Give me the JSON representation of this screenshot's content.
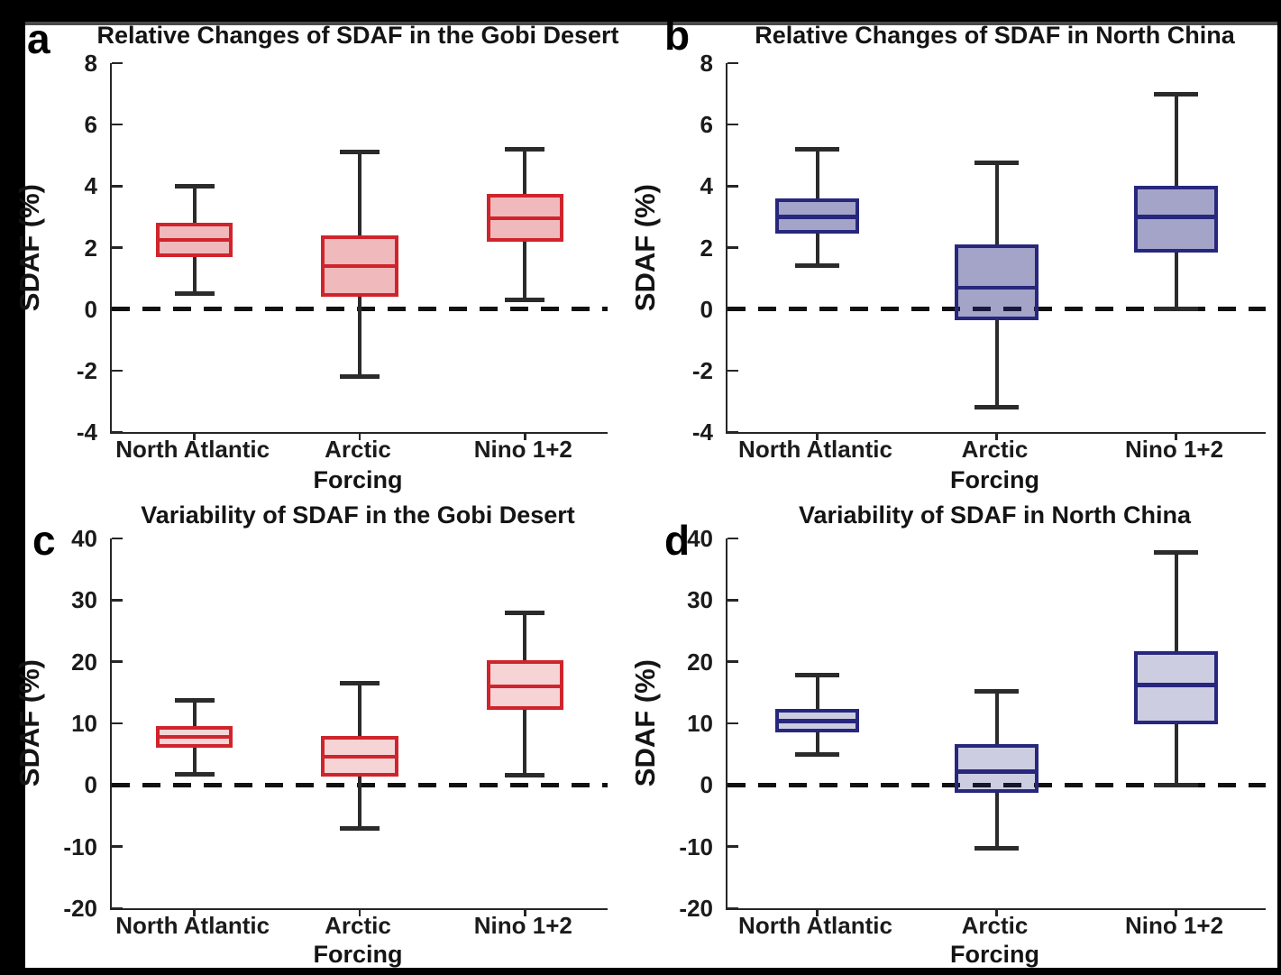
{
  "colors": {
    "frame_background": "#000000",
    "canvas_background": "#ffffff",
    "axis_line": "#262626",
    "whisker_line": "#2b2b2b",
    "zero_dash_line": "#111111",
    "red_box_edge": "#d0242c",
    "red_box_fill_top": "rgba(208,36,44,0.32)",
    "red_box_fill_bottom": "rgba(208,36,44,0.20)",
    "blue_box_edge": "#27277d",
    "blue_box_fill_top": "rgba(39,39,125,0.42)",
    "blue_box_fill_bottom": "rgba(39,39,125,0.23)"
  },
  "chart_data": [
    {
      "type": "box",
      "letter": "a",
      "title": "Relative Changes of SDAF in the Gobi Desert",
      "ylabel": "SDAF (%)",
      "xlabel": "Forcing",
      "ylim": [
        -4,
        8
      ],
      "yticks": [
        -4,
        -2,
        0,
        2,
        4,
        6,
        8
      ],
      "zero_line": "dashed",
      "categories": [
        "North Atlantic",
        "Arctic",
        "Nino 1+2"
      ],
      "box_edge_color": "#d0242c",
      "box_fill_color": "rgba(208,36,44,0.32)",
      "boxes": [
        {
          "category": "North Atlantic",
          "whisker_low": 0.5,
          "q1": 1.7,
          "median": 2.25,
          "q3": 2.8,
          "whisker_high": 4.0
        },
        {
          "category": "Arctic",
          "whisker_low": -2.2,
          "q1": 0.4,
          "median": 1.4,
          "q3": 2.4,
          "whisker_high": 5.1
        },
        {
          "category": "Nino 1+2",
          "whisker_low": 0.3,
          "q1": 2.2,
          "median": 2.95,
          "q3": 3.75,
          "whisker_high": 5.2
        }
      ]
    },
    {
      "type": "box",
      "letter": "b",
      "title": "Relative Changes of SDAF in North China",
      "ylabel": "SDAF (%)",
      "xlabel": "Forcing",
      "ylim": [
        -4,
        8
      ],
      "yticks": [
        -4,
        -2,
        0,
        2,
        4,
        6,
        8
      ],
      "zero_line": "dashed",
      "categories": [
        "North Atlantic",
        "Arctic",
        "Nino 1+2"
      ],
      "box_edge_color": "#27277d",
      "box_fill_color": "rgba(39,39,125,0.42)",
      "boxes": [
        {
          "category": "North Atlantic",
          "whisker_low": 1.4,
          "q1": 2.45,
          "median": 3.0,
          "q3": 3.6,
          "whisker_high": 5.2
        },
        {
          "category": "Arctic",
          "whisker_low": -3.2,
          "q1": -0.35,
          "median": 0.7,
          "q3": 2.1,
          "whisker_high": 4.75
        },
        {
          "category": "Nino 1+2",
          "whisker_low": 0.0,
          "q1": 1.85,
          "median": 3.0,
          "q3": 4.0,
          "whisker_high": 7.0
        }
      ]
    },
    {
      "type": "box",
      "letter": "c",
      "title": "Variability of SDAF in the Gobi Desert",
      "ylabel": "SDAF (%)",
      "xlabel": "Forcing",
      "ylim": [
        -20,
        40
      ],
      "yticks": [
        -20,
        -10,
        0,
        10,
        20,
        30,
        40
      ],
      "zero_line": "dashed",
      "categories": [
        "North Atlantic",
        "Arctic",
        "Nino 1+2"
      ],
      "box_edge_color": "#d0242c",
      "box_fill_color": "rgba(208,36,44,0.20)",
      "boxes": [
        {
          "category": "North Atlantic",
          "whisker_low": 1.8,
          "q1": 6.0,
          "median": 7.8,
          "q3": 9.5,
          "whisker_high": 13.7
        },
        {
          "category": "Arctic",
          "whisker_low": -7.0,
          "q1": 1.4,
          "median": 4.6,
          "q3": 8.0,
          "whisker_high": 16.5
        },
        {
          "category": "Nino 1+2",
          "whisker_low": 1.6,
          "q1": 12.2,
          "median": 16.0,
          "q3": 20.2,
          "whisker_high": 28.0
        }
      ]
    },
    {
      "type": "box",
      "letter": "d",
      "title": "Variability of SDAF in North China",
      "ylabel": "SDAF (%)",
      "xlabel": "Forcing",
      "ylim": [
        -20,
        40
      ],
      "yticks": [
        -20,
        -10,
        0,
        10,
        20,
        30,
        40
      ],
      "zero_line": "dashed",
      "categories": [
        "North Atlantic",
        "Arctic",
        "Nino 1+2"
      ],
      "box_edge_color": "#27277d",
      "box_fill_color": "rgba(39,39,125,0.23)",
      "boxes": [
        {
          "category": "North Atlantic",
          "whisker_low": 4.9,
          "q1": 8.5,
          "median": 10.4,
          "q3": 12.3,
          "whisker_high": 17.8
        },
        {
          "category": "Arctic",
          "whisker_low": -10.3,
          "q1": -1.2,
          "median": 2.2,
          "q3": 6.7,
          "whisker_high": 15.2
        },
        {
          "category": "Nino 1+2",
          "whisker_low": 0.0,
          "q1": 9.9,
          "median": 16.2,
          "q3": 21.7,
          "whisker_high": 37.8
        }
      ]
    }
  ]
}
